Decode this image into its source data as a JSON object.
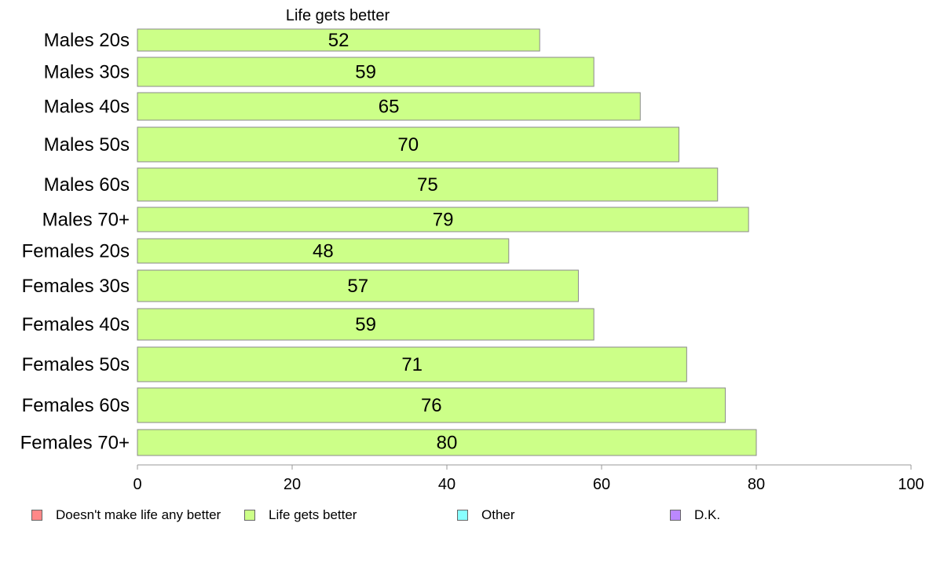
{
  "chart_data": {
    "type": "bar",
    "orientation": "horizontal",
    "header": "Life gets better",
    "categories": [
      "Males 20s",
      "Males 30s",
      "Males 40s",
      "Males 50s",
      "Males 60s",
      "Males 70+",
      "Females 20s",
      "Females 30s",
      "Females 40s",
      "Females 50s",
      "Females 60s",
      "Females 70+"
    ],
    "series": [
      {
        "name": "Life gets better",
        "values": [
          52,
          59,
          65,
          70,
          75,
          79,
          48,
          57,
          59,
          71,
          76,
          80
        ],
        "color": "#ccff88"
      }
    ],
    "xlim": [
      0,
      100
    ],
    "xticks": [
      0,
      20,
      40,
      60,
      80,
      100
    ],
    "grid": false,
    "legend_position": "bottom",
    "legend": [
      {
        "label": "Doesn't make life any better",
        "color": "#ff8888"
      },
      {
        "label": "Life gets better",
        "color": "#ccff88"
      },
      {
        "label": "Other",
        "color": "#88ffff"
      },
      {
        "label": "D.K.",
        "color": "#bb88ff"
      }
    ]
  }
}
